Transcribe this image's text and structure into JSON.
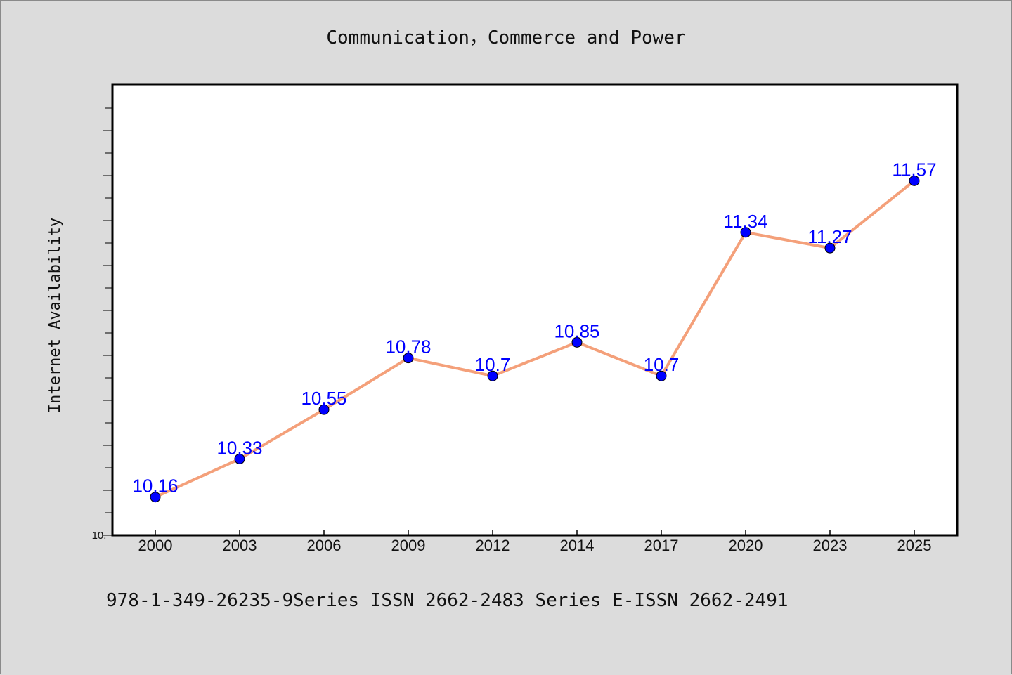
{
  "chart_data": {
    "type": "line",
    "title": "Communication，Commerce and Power",
    "ylabel": "Internet Availability",
    "xlabel": "",
    "categories": [
      "2000",
      "2003",
      "2006",
      "2009",
      "2012",
      "2014",
      "2017",
      "2020",
      "2023",
      "2025"
    ],
    "series": [
      {
        "values": [
          10.16,
          10.33,
          10.55,
          10.78,
          10.7,
          10.85,
          10.7,
          11.34,
          11.27,
          11.57
        ],
        "data_labels": [
          "10.16",
          "10.33",
          "10.55",
          "10.78",
          "10.7",
          "10.85",
          "10.7",
          "11.34",
          "11.27",
          "11.57"
        ],
        "line_color": "#f4a07a",
        "marker_color": "#0000ff"
      }
    ],
    "ylim": [
      9.99,
      12.0
    ],
    "y_tick_label": "10.",
    "grid": false,
    "legend": "none"
  },
  "footer": "978-1-349-26235-9Series ISSN 2662-2483 Series E-ISSN 2662-2491",
  "colors": {
    "background": "#dcdcdc",
    "plot_background": "#ffffff",
    "line": "#f4a07a",
    "marker": "#0000ff",
    "label": "#0000ff"
  }
}
